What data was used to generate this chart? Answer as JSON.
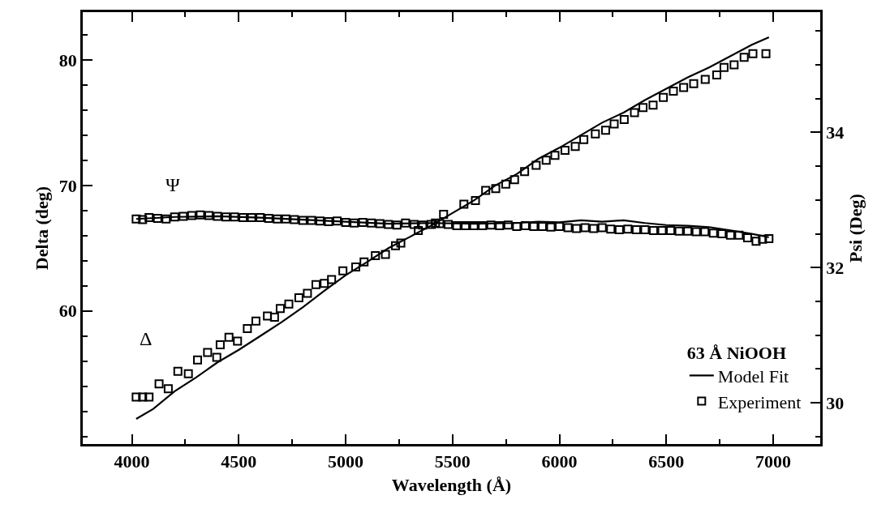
{
  "chart_data": {
    "type": "line",
    "xlabel": "Wavelength (Å)",
    "ylabel": "Delta (deg)",
    "y2label": "Psi (Deg)",
    "legend_title": "63 Å NiOOH",
    "legend": "bottom right",
    "xlim": [
      3770,
      7220
    ],
    "xticks": [
      4000,
      {
        "value": 4250,
        "label": null
      },
      4500,
      {
        "value": 4750,
        "label": null
      },
      5000,
      {
        "value": 5250,
        "label": null
      },
      5500,
      {
        "value": 5750,
        "label": null
      },
      6000,
      {
        "value": 6250,
        "label": null
      },
      6500,
      {
        "value": 6750,
        "label": null
      },
      7000
    ],
    "ylim": [
      49.4,
      83.8
    ],
    "yticks": [
      {
        "value": 50,
        "label": null
      },
      {
        "value": 52,
        "label": null
      },
      {
        "value": 54,
        "label": null
      },
      {
        "value": 56,
        "label": null
      },
      {
        "value": 58,
        "label": null
      },
      60,
      {
        "value": 62,
        "label": null
      },
      {
        "value": 64,
        "label": null
      },
      {
        "value": 66,
        "label": null
      },
      {
        "value": 68,
        "label": null
      },
      70,
      {
        "value": 72,
        "label": null
      },
      {
        "value": 74,
        "label": null
      },
      {
        "value": 76,
        "label": null
      },
      {
        "value": 78,
        "label": null
      },
      80,
      {
        "value": 82,
        "label": null
      }
    ],
    "y2lim": [
      29.39,
      35.78
    ],
    "y2ticks": [
      {
        "value": 29.5,
        "label": null
      },
      30,
      {
        "value": 30.5,
        "label": null
      },
      {
        "value": 31,
        "label": null
      },
      {
        "value": 31.5,
        "label": null
      },
      32,
      {
        "value": 32.5,
        "label": null
      },
      {
        "value": 33,
        "label": null
      },
      {
        "value": 33.5,
        "label": null
      },
      34,
      {
        "value": 34.5,
        "label": null
      },
      {
        "value": 35,
        "label": null
      },
      {
        "value": 35.5,
        "label": null
      }
    ],
    "annotations": [
      "Ψ",
      "Δ"
    ],
    "series": [
      {
        "name": "Model Fit",
        "color": "#000000",
        "line_style": "solid",
        "x": [
          4020,
          4100,
          4200,
          4300,
          4400,
          4500,
          4600,
          4700,
          4800,
          4900,
          5000,
          5100,
          5200,
          5300,
          5400,
          5500,
          5600,
          5700,
          5800,
          5900,
          6000,
          6100,
          6200,
          6300,
          6400,
          6500,
          6600,
          6700,
          6800,
          6900,
          6980
        ],
        "values": [
          51.4,
          52.2,
          53.6,
          54.7,
          55.9,
          56.9,
          58.0,
          59.1,
          60.3,
          61.6,
          62.85,
          63.9,
          65.0,
          65.9,
          66.8,
          67.8,
          68.8,
          70.0,
          70.9,
          72.1,
          73.0,
          74.0,
          75.0,
          75.8,
          76.8,
          77.7,
          78.6,
          79.4,
          80.3,
          81.2,
          81.8
        ]
      },
      {
        "name": "Experiment",
        "type": "scatter",
        "marker": "square",
        "color": "#000000",
        "x": [
          4020,
          4050,
          4080,
          4127,
          4170,
          4215,
          4264,
          4307,
          4354,
          4397,
          4413,
          4454,
          4494,
          4540,
          4580,
          4634,
          4667,
          4694,
          4734,
          4781,
          4821,
          4861,
          4900,
          4934,
          4987,
          5047,
          5086,
          5139,
          5186,
          5233,
          5258,
          5340,
          5420,
          5458,
          5553,
          5607,
          5655,
          5702,
          5749,
          5790,
          5837,
          5891,
          5938,
          5979,
          6026,
          6074,
          6114,
          6168,
          6216,
          6256,
          6303,
          6351,
          6391,
          6438,
          6486,
          6533,
          6581,
          6628,
          6682,
          6736,
          6770,
          6817,
          6864,
          6905,
          6966
        ],
        "values": [
          53.15,
          53.15,
          53.15,
          54.2,
          53.8,
          55.2,
          55.0,
          56.1,
          56.7,
          56.3,
          57.3,
          57.9,
          57.6,
          58.6,
          59.2,
          59.6,
          59.5,
          60.2,
          60.55,
          61.05,
          61.4,
          62.1,
          62.2,
          62.5,
          63.2,
          63.5,
          63.9,
          64.4,
          64.5,
          65.2,
          65.4,
          66.4,
          67.0,
          67.7,
          68.5,
          68.8,
          69.6,
          69.75,
          70.1,
          70.45,
          71.1,
          71.6,
          72.0,
          72.4,
          72.8,
          73.1,
          73.65,
          74.1,
          74.4,
          74.9,
          75.25,
          75.8,
          76.2,
          76.4,
          77.0,
          77.5,
          77.8,
          78.1,
          78.45,
          78.8,
          79.4,
          79.6,
          80.2,
          80.5,
          80.5
        ]
      },
      {
        "axis": "y2",
        "color": "#000000",
        "line_style": "solid",
        "x": [
          4020,
          4200,
          4400,
          4600,
          4800,
          5000,
          5200,
          5400,
          5600,
          5800,
          5900,
          6000,
          6100,
          6200,
          6300,
          6400,
          6500,
          6600,
          6700,
          6800,
          6900,
          6980
        ],
        "values": [
          32.72,
          32.75,
          32.76,
          32.74,
          32.71,
          32.68,
          32.65,
          32.66,
          32.65,
          32.66,
          32.68,
          32.67,
          32.7,
          32.68,
          32.7,
          32.66,
          32.63,
          32.62,
          32.6,
          32.55,
          32.5,
          32.45
        ]
      },
      {
        "type": "scatter",
        "axis": "y2",
        "marker": "square",
        "color": "#000000",
        "x": [
          4020,
          4050,
          4080,
          4120,
          4160,
          4200,
          4240,
          4280,
          4320,
          4360,
          4400,
          4440,
          4480,
          4520,
          4560,
          4600,
          4640,
          4680,
          4720,
          4760,
          4800,
          4840,
          4880,
          4920,
          4960,
          5000,
          5040,
          5080,
          5120,
          5160,
          5200,
          5240,
          5280,
          5320,
          5360,
          5400,
          5440,
          5480,
          5520,
          5560,
          5600,
          5640,
          5680,
          5720,
          5760,
          5800,
          5840,
          5880,
          5920,
          5960,
          6000,
          6040,
          6080,
          6120,
          6160,
          6200,
          6240,
          6280,
          6320,
          6360,
          6400,
          6440,
          6480,
          6520,
          6560,
          6600,
          6640,
          6680,
          6720,
          6760,
          6800,
          6840,
          6880,
          6920,
          6950,
          6980
        ],
        "values": [
          32.72,
          32.71,
          32.74,
          32.73,
          32.72,
          32.75,
          32.76,
          32.77,
          32.78,
          32.77,
          32.76,
          32.75,
          32.75,
          32.74,
          32.74,
          32.74,
          32.73,
          32.72,
          32.72,
          32.71,
          32.7,
          32.7,
          32.69,
          32.68,
          32.69,
          32.67,
          32.66,
          32.67,
          32.66,
          32.65,
          32.64,
          32.63,
          32.66,
          32.64,
          32.63,
          32.64,
          32.65,
          32.64,
          32.62,
          32.62,
          32.62,
          32.62,
          32.63,
          32.62,
          32.63,
          32.61,
          32.62,
          32.61,
          32.61,
          32.6,
          32.61,
          32.59,
          32.58,
          32.59,
          32.58,
          32.59,
          32.57,
          32.56,
          32.57,
          32.56,
          32.56,
          32.55,
          32.55,
          32.55,
          32.54,
          32.54,
          32.53,
          32.53,
          32.51,
          32.5,
          32.48,
          32.48,
          32.44,
          32.39,
          32.42,
          32.43
        ]
      }
    ]
  }
}
